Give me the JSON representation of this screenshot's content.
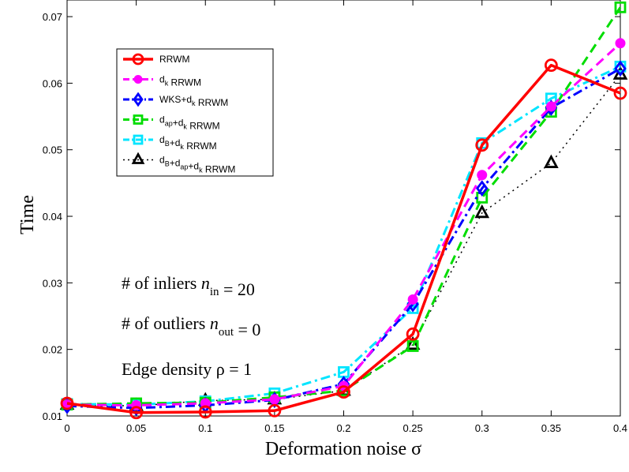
{
  "chart_data": {
    "type": "line",
    "xlabel": "Deformation noise σ",
    "ylabel": "Time",
    "xlim": [
      0,
      0.4
    ],
    "ylim": [
      0.01,
      0.0725
    ],
    "x": [
      0,
      0.05,
      0.1,
      0.15,
      0.2,
      0.25,
      0.3,
      0.35,
      0.4
    ],
    "x_ticks": [
      "0",
      "0.05",
      "0.1",
      "0.15",
      "0.2",
      "0.25",
      "0.3",
      "0.35",
      "0.4"
    ],
    "y_ticks": [
      {
        "value": 0.01,
        "label": "0.01"
      },
      {
        "value": 0.02,
        "label": "0.02"
      },
      {
        "value": 0.03,
        "label": "0.03"
      },
      {
        "value": 0.04,
        "label": "0.04"
      },
      {
        "value": 0.05,
        "label": "0.05"
      },
      {
        "value": 0.06,
        "label": "0.06"
      },
      {
        "value": 0.07,
        "label": "0.07"
      }
    ],
    "grid": false,
    "legend_position": "top-left",
    "series": [
      {
        "name": "RRWM",
        "color": "#ff0000",
        "dash": "solid",
        "marker": "circle",
        "width": 3.5,
        "legend": {
          "base": "RRWM",
          "parts": [
            [
              "RRWM",
              ""
            ]
          ]
        },
        "values": [
          0.0119,
          0.0105,
          0.0106,
          0.0108,
          0.0136,
          0.0223,
          0.0507,
          0.0627,
          0.0585
        ]
      },
      {
        "name": "dk RRWM",
        "color": "#ff00ff",
        "dash": "dash",
        "marker": "dot",
        "width": 3,
        "legend": {
          "parts": [
            [
              "d",
              ""
            ],
            [
              "k",
              "sub"
            ],
            [
              " RRWM",
              ""
            ]
          ]
        },
        "values": [
          0.0117,
          0.0116,
          0.0119,
          0.0125,
          0.0145,
          0.0275,
          0.0462,
          0.0565,
          0.066
        ]
      },
      {
        "name": "WKS+dk RRWM",
        "color": "#0000ff",
        "dash": "dashdot",
        "marker": "diamond",
        "width": 3,
        "legend": {
          "parts": [
            [
              "WKS+d",
              ""
            ],
            [
              "k",
              "sub"
            ],
            [
              " RRWM",
              ""
            ]
          ]
        },
        "values": [
          0.0115,
          0.0112,
          0.0116,
          0.0124,
          0.0148,
          0.0268,
          0.0442,
          0.0563,
          0.0622
        ]
      },
      {
        "name": "dap+dk RRWM",
        "color": "#00dd00",
        "dash": "dash",
        "marker": "square",
        "width": 3,
        "legend": {
          "parts": [
            [
              "d",
              ""
            ],
            [
              "ap",
              "sub"
            ],
            [
              "+d",
              ""
            ],
            [
              "k",
              "sub"
            ],
            [
              " RRWM",
              ""
            ]
          ]
        },
        "values": [
          0.0117,
          0.0119,
          0.012,
          0.0128,
          0.0138,
          0.0205,
          0.0428,
          0.0557,
          0.0714
        ]
      },
      {
        "name": "dB+dk RRWM",
        "color": "#00e5ff",
        "dash": "dashdot",
        "marker": "square",
        "width": 3,
        "legend": {
          "parts": [
            [
              "d",
              ""
            ],
            [
              "B",
              "sub"
            ],
            [
              "+d",
              ""
            ],
            [
              "k",
              "sub"
            ],
            [
              " RRWM",
              ""
            ]
          ]
        },
        "values": [
          0.0118,
          0.0117,
          0.0122,
          0.0134,
          0.0166,
          0.0262,
          0.051,
          0.0577,
          0.0625
        ]
      },
      {
        "name": "dB+dap+dk RRWM",
        "color": "#000000",
        "dash": "dot",
        "marker": "triangle",
        "width": 1.5,
        "legend": {
          "parts": [
            [
              "d",
              ""
            ],
            [
              "B",
              "sub"
            ],
            [
              "+d",
              ""
            ],
            [
              "ap",
              "sub"
            ],
            [
              "+d",
              ""
            ],
            [
              "k",
              "sub"
            ],
            [
              " RRWM",
              ""
            ]
          ]
        },
        "values": [
          0.0117,
          0.0115,
          0.0123,
          0.0125,
          0.0138,
          0.0207,
          0.0405,
          0.048,
          0.0613
        ]
      }
    ],
    "annotations": [
      {
        "parts": [
          [
            "# of inliers ",
            ""
          ],
          [
            "n",
            "it"
          ],
          [
            "in",
            "sub"
          ],
          [
            " = 20",
            ""
          ]
        ]
      },
      {
        "parts": [
          [
            "# of outliers ",
            ""
          ],
          [
            "n",
            "it"
          ],
          [
            "out",
            "sub"
          ],
          [
            " = 0",
            ""
          ]
        ]
      },
      {
        "parts": [
          [
            "Edge density ρ = 1",
            ""
          ]
        ]
      }
    ]
  }
}
